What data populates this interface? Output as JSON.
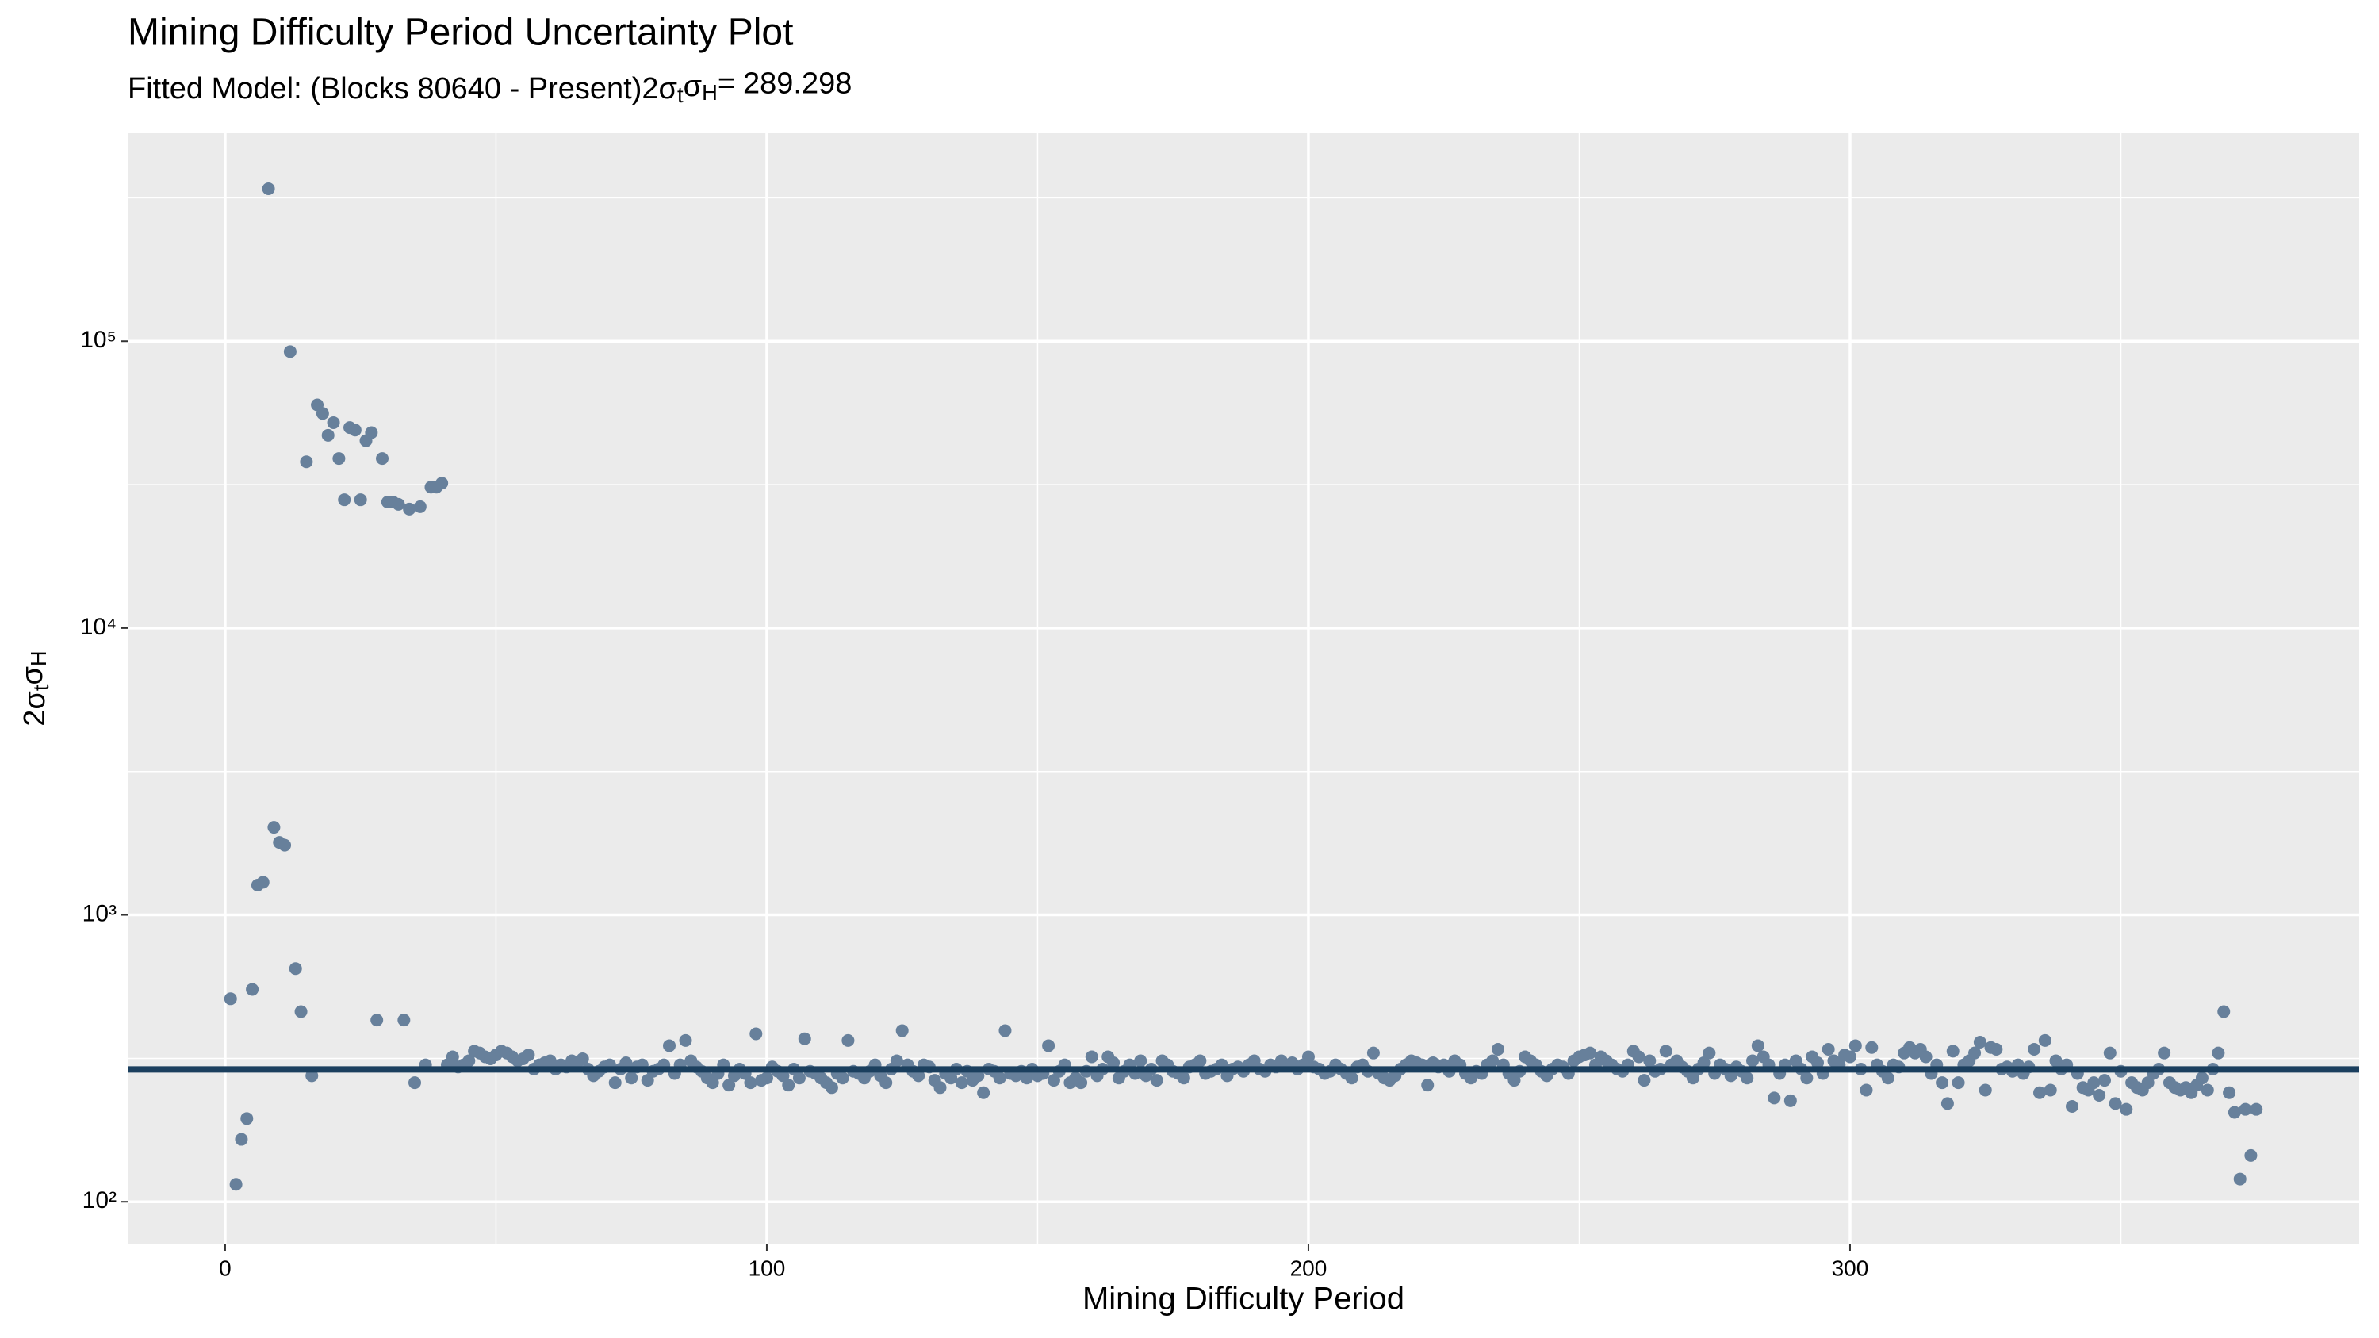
{
  "chart_data": {
    "type": "scatter",
    "title": "Mining Difficulty Period Uncertainty Plot",
    "subtitle": "Fitted Model: (Blocks 80640 - Present)",
    "fit": {
      "label_parts": [
        "2σ",
        "t",
        "σ",
        "H",
        "="
      ],
      "value": 289.298,
      "color": "#1b3f5e"
    },
    "xlabel": "Mining Difficulty Period",
    "ylabel_parts": [
      "2σ",
      "t",
      "σ",
      "H"
    ],
    "log_y": true,
    "grid": true,
    "color": "#67809b",
    "xlim": [
      -18,
      394
    ],
    "xticks": [
      0,
      100,
      200,
      300
    ],
    "xminor": [
      50,
      150,
      250,
      350
    ],
    "ylim": [
      71,
      531000
    ],
    "yticks": [
      {
        "value": 100,
        "label": "10²"
      },
      {
        "value": 1000,
        "label": "10³"
      },
      {
        "value": 10000,
        "label": "10⁴"
      },
      {
        "value": 100000,
        "label": "10⁵"
      }
    ],
    "yminor": [
      316,
      3162,
      31623,
      316228
    ],
    "x": [
      1,
      2,
      3,
      4,
      5,
      6,
      7,
      8,
      9,
      10,
      11,
      12,
      13,
      14,
      15,
      16,
      17,
      18,
      19,
      20,
      21,
      22,
      23,
      24,
      25,
      26,
      27,
      28,
      29,
      30,
      31,
      32,
      33,
      34,
      35,
      36,
      37,
      38,
      39,
      40,
      41,
      42,
      43,
      44,
      45,
      46,
      47,
      48,
      49,
      50,
      51,
      52,
      53,
      54,
      55,
      56,
      57,
      58,
      59,
      60,
      61,
      62,
      63,
      64,
      65,
      66,
      67,
      68,
      69,
      70,
      71,
      72,
      73,
      74,
      75,
      76,
      77,
      78,
      79,
      80,
      81,
      82,
      83,
      84,
      85,
      86,
      87,
      88,
      89,
      90,
      91,
      92,
      93,
      94,
      95,
      96,
      97,
      98,
      99,
      100,
      101,
      102,
      103,
      104,
      105,
      106,
      107,
      108,
      109,
      110,
      111,
      112,
      113,
      114,
      115,
      116,
      117,
      118,
      119,
      120,
      121,
      122,
      123,
      124,
      125,
      126,
      127,
      128,
      129,
      130,
      131,
      132,
      133,
      134,
      135,
      136,
      137,
      138,
      139,
      140,
      141,
      142,
      143,
      144,
      145,
      146,
      147,
      148,
      149,
      150,
      151,
      152,
      153,
      154,
      155,
      156,
      157,
      158,
      159,
      160,
      161,
      162,
      163,
      164,
      165,
      166,
      167,
      168,
      169,
      170,
      171,
      172,
      173,
      174,
      175,
      176,
      177,
      178,
      179,
      180,
      181,
      182,
      183,
      184,
      185,
      186,
      187,
      188,
      189,
      190,
      191,
      192,
      193,
      194,
      195,
      196,
      197,
      198,
      199,
      200,
      201,
      202,
      203,
      204,
      205,
      206,
      207,
      208,
      209,
      210,
      211,
      212,
      213,
      214,
      215,
      216,
      217,
      218,
      219,
      220,
      221,
      222,
      223,
      224,
      225,
      226,
      227,
      228,
      229,
      230,
      231,
      232,
      233,
      234,
      235,
      236,
      237,
      238,
      239,
      240,
      241,
      242,
      243,
      244,
      245,
      246,
      247,
      248,
      249,
      250,
      251,
      252,
      253,
      254,
      255,
      256,
      257,
      258,
      259,
      260,
      261,
      262,
      263,
      264,
      265,
      266,
      267,
      268,
      269,
      270,
      271,
      272,
      273,
      274,
      275,
      276,
      277,
      278,
      279,
      280,
      281,
      282,
      283,
      284,
      285,
      286,
      287,
      288,
      289,
      290,
      291,
      292,
      293,
      294,
      295,
      296,
      297,
      298,
      299,
      300,
      301,
      302,
      303,
      304,
      305,
      306,
      307,
      308,
      309,
      310,
      311,
      312,
      313,
      314,
      315,
      316,
      317,
      318,
      319,
      320,
      321,
      322,
      323,
      324,
      325,
      326,
      327,
      328,
      329,
      330,
      331,
      332,
      333,
      334,
      335,
      336,
      337,
      338,
      339,
      340,
      341,
      342,
      343,
      344,
      345,
      346,
      347,
      348,
      349,
      350,
      351,
      352,
      353,
      354,
      355,
      356,
      357,
      358,
      359,
      360,
      361,
      362,
      363,
      364,
      365,
      366,
      367,
      368,
      369,
      370,
      371,
      372,
      373,
      374,
      375
    ],
    "values": [
      510,
      115,
      165,
      195,
      550,
      1270,
      1300,
      340000,
      2020,
      1790,
      1750,
      92000,
      650,
      460,
      38000,
      275,
      60000,
      56000,
      47000,
      52000,
      39000,
      28000,
      50000,
      49000,
      28000,
      45000,
      48000,
      430,
      39000,
      27500,
      27500,
      27000,
      430,
      26000,
      260,
      26500,
      300,
      31000,
      31000,
      32000,
      300,
      320,
      295,
      300,
      310,
      335,
      330,
      320,
      315,
      325,
      335,
      330,
      320,
      310,
      315,
      325,
      290,
      300,
      305,
      310,
      290,
      300,
      295,
      310,
      305,
      315,
      290,
      275,
      285,
      295,
      300,
      260,
      290,
      305,
      270,
      295,
      300,
      265,
      285,
      290,
      300,
      350,
      280,
      300,
      365,
      310,
      295,
      285,
      270,
      260,
      280,
      300,
      255,
      275,
      290,
      280,
      260,
      385,
      265,
      270,
      295,
      285,
      275,
      255,
      290,
      270,
      370,
      285,
      280,
      270,
      260,
      250,
      280,
      270,
      365,
      285,
      280,
      270,
      285,
      300,
      275,
      260,
      290,
      310,
      395,
      300,
      285,
      275,
      300,
      295,
      265,
      250,
      280,
      270,
      290,
      260,
      285,
      265,
      275,
      240,
      290,
      285,
      270,
      395,
      280,
      275,
      285,
      270,
      290,
      275,
      280,
      350,
      265,
      285,
      300,
      260,
      270,
      260,
      285,
      320,
      275,
      290,
      320,
      305,
      270,
      285,
      300,
      280,
      310,
      275,
      290,
      265,
      310,
      300,
      285,
      280,
      270,
      295,
      300,
      310,
      280,
      285,
      290,
      300,
      275,
      290,
      295,
      285,
      300,
      310,
      290,
      285,
      300,
      295,
      310,
      300,
      305,
      290,
      300,
      320,
      295,
      290,
      280,
      285,
      300,
      290,
      280,
      270,
      295,
      300,
      285,
      330,
      280,
      270,
      265,
      275,
      290,
      300,
      310,
      305,
      300,
      255,
      305,
      295,
      300,
      285,
      310,
      300,
      280,
      270,
      285,
      280,
      300,
      310,
      340,
      300,
      280,
      265,
      285,
      320,
      310,
      300,
      285,
      275,
      290,
      300,
      295,
      280,
      310,
      320,
      325,
      330,
      300,
      320,
      310,
      300,
      290,
      285,
      300,
      335,
      320,
      265,
      310,
      285,
      290,
      335,
      300,
      310,
      295,
      285,
      270,
      290,
      305,
      330,
      280,
      300,
      290,
      275,
      295,
      285,
      270,
      310,
      350,
      320,
      300,
      230,
      280,
      300,
      225,
      310,
      290,
      270,
      320,
      305,
      280,
      340,
      310,
      300,
      325,
      320,
      350,
      290,
      245,
      345,
      300,
      285,
      270,
      300,
      295,
      330,
      345,
      330,
      340,
      320,
      280,
      300,
      260,
      220,
      335,
      260,
      300,
      310,
      330,
      360,
      245,
      345,
      340,
      290,
      295,
      285,
      300,
      280,
      295,
      340,
      240,
      365,
      245,
      310,
      290,
      300,
      215,
      280,
      250,
      245,
      260,
      235,
      265,
      330,
      220,
      285,
      210,
      260,
      250,
      245,
      260,
      280,
      290,
      330,
      260,
      250,
      245,
      250,
      240,
      255,
      270,
      245,
      290,
      330,
      460,
      240,
      205,
      120,
      210,
      145,
      210
    ]
  }
}
